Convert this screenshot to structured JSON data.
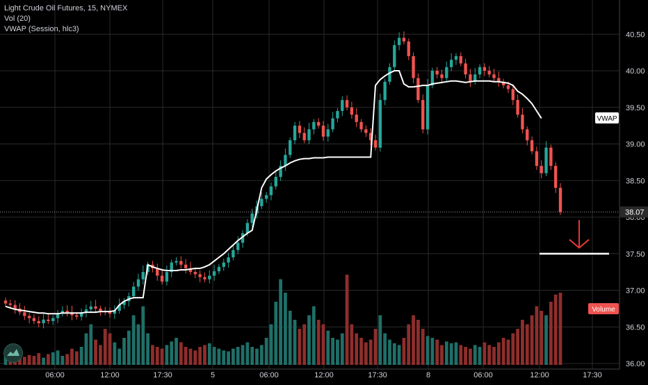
{
  "legend": {
    "symbol_line": "Light Crude Oil Futures, 15, NYMEX",
    "volume_line": "Vol (20)",
    "vwap_line": "VWAP (Session, hlc3)"
  },
  "badges": {
    "vwap_label": "VWAP",
    "price_label": "38.07",
    "volume_label": "Volume"
  },
  "colors": {
    "background": "#000000",
    "up": "#26a69a",
    "down": "#ef5350",
    "vwap": "#ffffff",
    "grid": "#2a2a2a",
    "annotation": "#e53935",
    "axis_text": "#d1d4dc",
    "volume_up": "#1f6f68",
    "volume_down": "#8e2e2c"
  },
  "chart_data": {
    "type": "candlestick",
    "title": "Light Crude Oil Futures, 15, NYMEX",
    "y_ticks": [
      "40.50",
      "40.00",
      "39.50",
      "39.00",
      "38.50",
      "38.00",
      "37.50",
      "37.00",
      "36.50",
      "36.00"
    ],
    "ylim": [
      36.0,
      40.6
    ],
    "x_ticks": [
      "06:00",
      "12:00",
      "17:30",
      "5",
      "06:00",
      "12:00",
      "17:30",
      "8",
      "06:00",
      "12:00",
      "17:30"
    ],
    "last_price": 38.07,
    "series": [
      {
        "name": "Price",
        "close": [
          36.82,
          36.8,
          36.75,
          36.7,
          36.65,
          36.62,
          36.58,
          36.55,
          36.6,
          36.58,
          36.62,
          36.68,
          36.72,
          36.7,
          36.66,
          36.64,
          36.7,
          36.74,
          36.78,
          36.75,
          36.72,
          36.7,
          36.68,
          36.72,
          36.8,
          36.85,
          36.92,
          37.05,
          37.15,
          37.25,
          37.35,
          37.3,
          37.2,
          37.12,
          37.25,
          37.38,
          37.4,
          37.35,
          37.3,
          37.25,
          37.22,
          37.18,
          37.15,
          37.2,
          37.26,
          37.32,
          37.38,
          37.45,
          37.55,
          37.65,
          37.78,
          37.92,
          38.05,
          38.15,
          38.25,
          38.3,
          38.42,
          38.55,
          38.7,
          38.85,
          39.05,
          39.25,
          39.15,
          39.05,
          39.2,
          39.3,
          39.25,
          39.1,
          39.2,
          39.35,
          39.45,
          39.6,
          39.5,
          39.4,
          39.3,
          39.2,
          39.15,
          39.05,
          38.95,
          39.6,
          39.85,
          40.05,
          40.35,
          40.45,
          40.4,
          40.2,
          39.9,
          39.6,
          39.2,
          39.8,
          40.0,
          39.95,
          39.9,
          40.05,
          40.15,
          40.2,
          40.1,
          39.95,
          39.85,
          39.95,
          40.05,
          40.0,
          39.95,
          39.9,
          39.85,
          39.8,
          39.75,
          39.6,
          39.4,
          39.2,
          39.05,
          38.9,
          38.7,
          38.6,
          38.95,
          38.7,
          38.4,
          38.07
        ]
      },
      {
        "name": "VWAP",
        "values": [
          36.78,
          36.76,
          36.74,
          36.73,
          36.72,
          36.71,
          36.7,
          36.69,
          36.69,
          36.68,
          36.68,
          36.68,
          36.69,
          36.69,
          36.69,
          36.69,
          36.69,
          36.7,
          36.7,
          36.7,
          36.71,
          36.71,
          36.71,
          36.72,
          36.8,
          36.85,
          36.88,
          36.9,
          36.9,
          36.9,
          37.35,
          37.32,
          37.3,
          37.28,
          37.27,
          37.27,
          37.27,
          37.28,
          37.28,
          37.29,
          37.3,
          37.3,
          37.32,
          37.35,
          37.4,
          37.45,
          37.5,
          37.56,
          37.62,
          37.68,
          37.73,
          37.78,
          37.82,
          38.1,
          38.4,
          38.52,
          38.58,
          38.63,
          38.67,
          38.7,
          38.74,
          38.77,
          38.79,
          38.8,
          38.8,
          38.81,
          38.81,
          38.81,
          38.82,
          38.82,
          38.82,
          38.82,
          38.82,
          38.82,
          38.82,
          38.82,
          38.82,
          38.82,
          39.8,
          39.88,
          39.93,
          39.97,
          40.0,
          40.0,
          39.82,
          39.78,
          39.78,
          39.79,
          39.8,
          39.8,
          39.82,
          39.83,
          39.84,
          39.85,
          39.86,
          39.86,
          39.85,
          39.84,
          39.85,
          39.86,
          39.86,
          39.86,
          39.86,
          39.85,
          39.85,
          39.84,
          39.83,
          39.8,
          39.72,
          39.68,
          39.62,
          39.55,
          39.45,
          39.35
        ]
      },
      {
        "name": "Vol (20)",
        "relative_height": [
          0.1,
          0.08,
          0.12,
          0.15,
          0.09,
          0.11,
          0.1,
          0.13,
          0.08,
          0.12,
          0.14,
          0.16,
          0.1,
          0.12,
          0.18,
          0.15,
          0.2,
          0.35,
          0.45,
          0.28,
          0.22,
          0.4,
          0.35,
          0.25,
          0.18,
          0.3,
          0.38,
          0.55,
          0.45,
          0.65,
          0.35,
          0.22,
          0.2,
          0.18,
          0.22,
          0.26,
          0.3,
          0.25,
          0.2,
          0.18,
          0.16,
          0.2,
          0.22,
          0.24,
          0.2,
          0.18,
          0.16,
          0.15,
          0.18,
          0.2,
          0.22,
          0.25,
          0.2,
          0.18,
          0.22,
          0.3,
          0.45,
          0.7,
          0.95,
          0.8,
          0.6,
          0.5,
          0.4,
          0.45,
          0.55,
          0.65,
          0.5,
          0.45,
          0.38,
          0.3,
          0.28,
          0.35,
          1.0,
          0.45,
          0.35,
          0.3,
          0.25,
          0.28,
          0.4,
          0.55,
          0.35,
          0.28,
          0.24,
          0.22,
          0.3,
          0.45,
          0.55,
          0.5,
          0.4,
          0.32,
          0.3,
          0.28,
          0.22,
          0.26,
          0.24,
          0.25,
          0.22,
          0.2,
          0.18,
          0.22,
          0.2,
          0.25,
          0.22,
          0.2,
          0.25,
          0.3,
          0.28,
          0.35,
          0.4,
          0.5,
          0.45,
          0.55,
          0.65,
          0.6,
          0.55,
          0.7,
          0.78,
          0.8
        ]
      }
    ],
    "annotations": [
      {
        "type": "arrow-down",
        "at_price": 37.58
      },
      {
        "type": "horizontal-line",
        "price": 37.5
      }
    ]
  }
}
